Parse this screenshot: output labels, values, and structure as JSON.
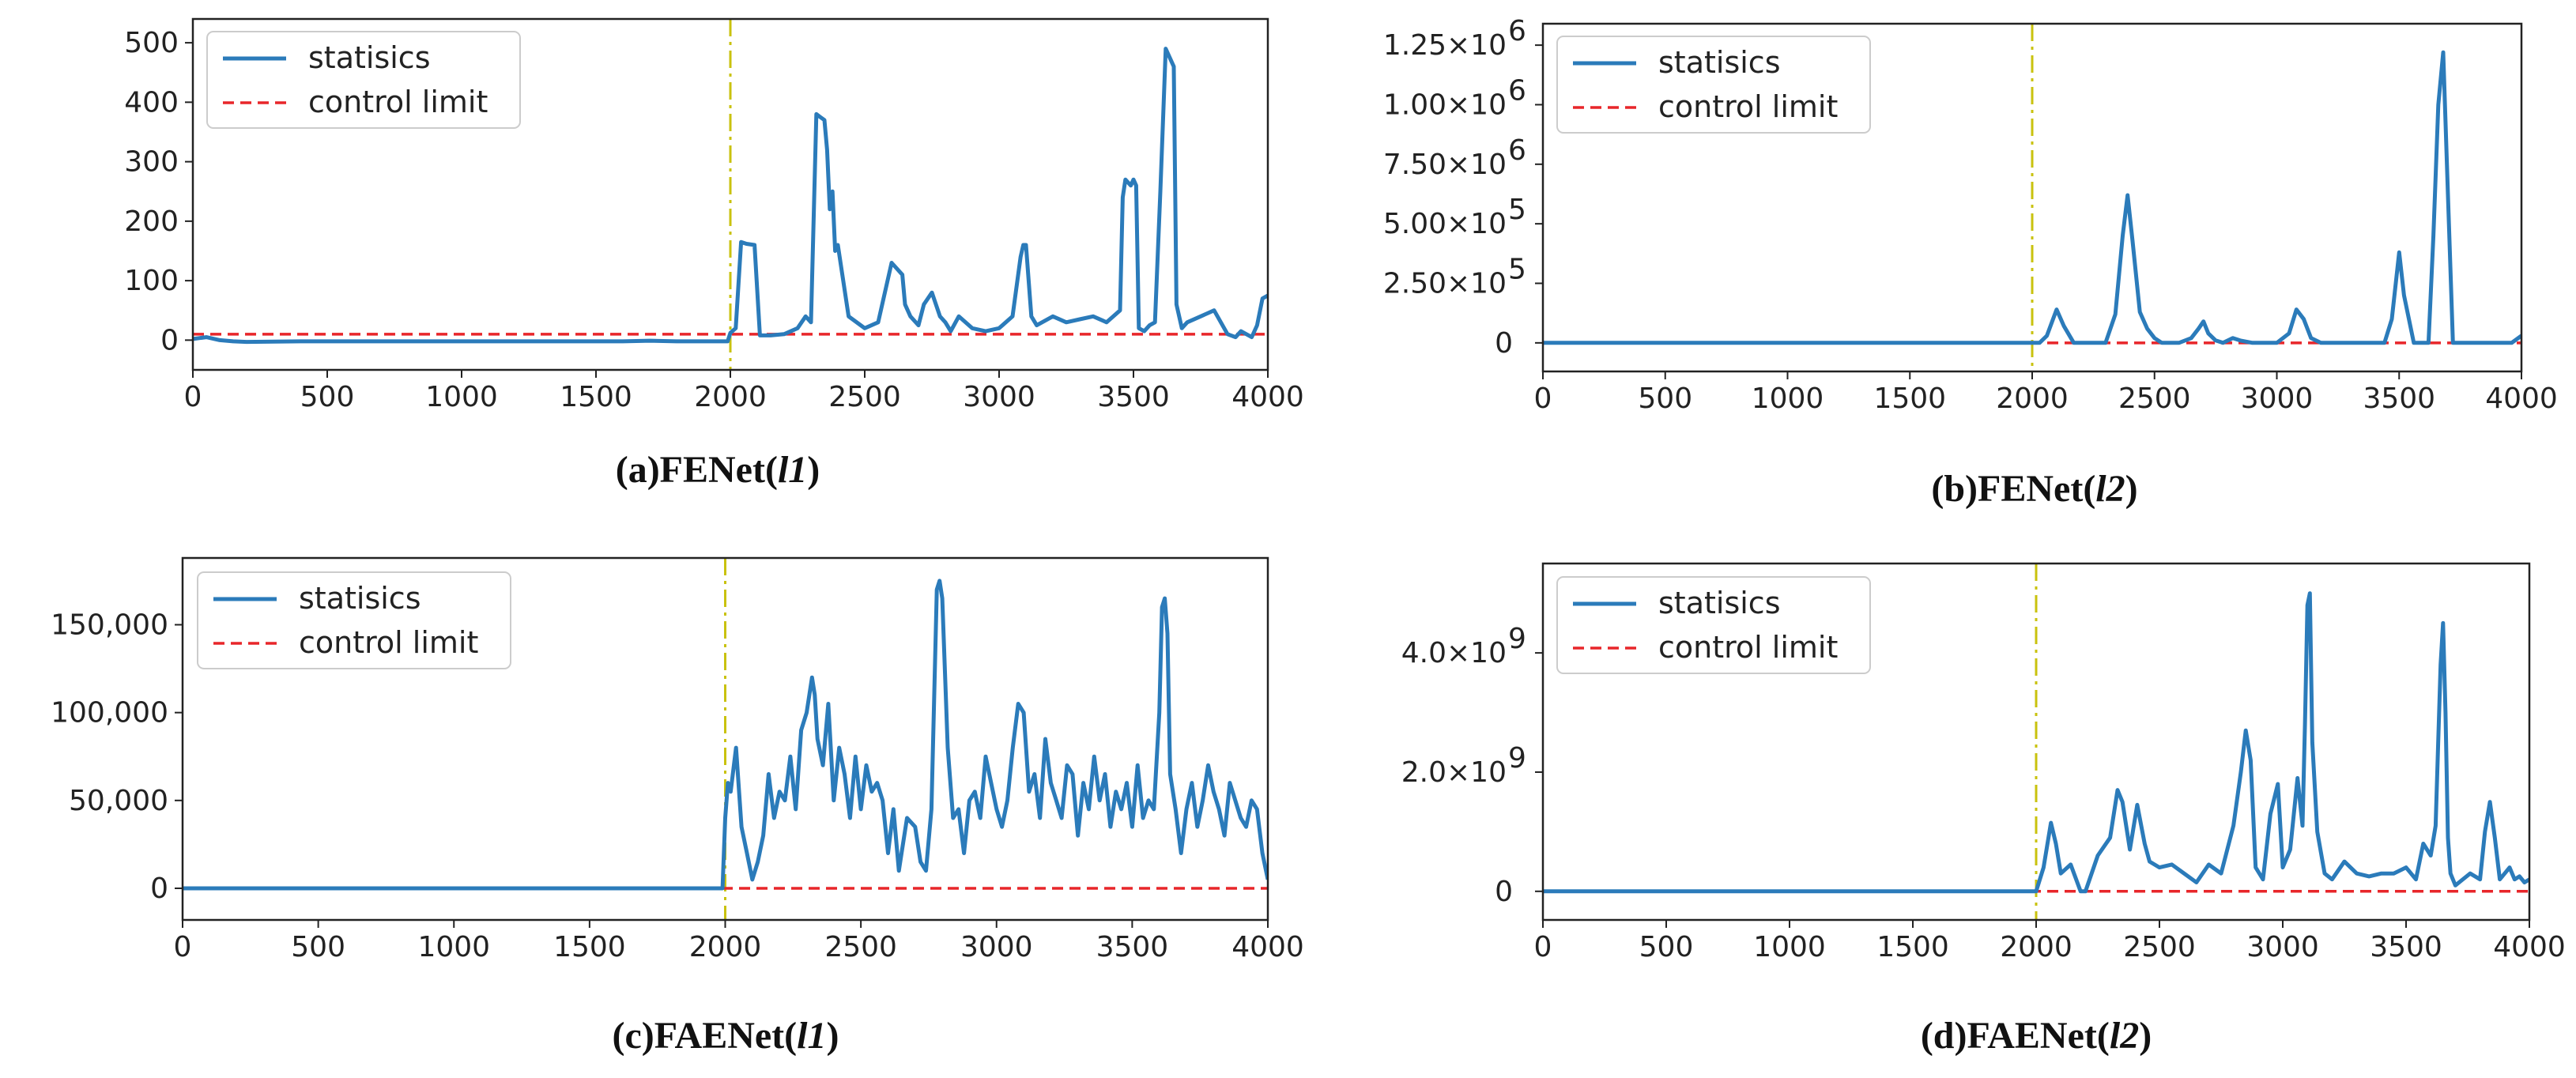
{
  "colors": {
    "statistics": "#2b7bba",
    "control_limit": "#e8262a",
    "marker": "#c9c20e",
    "axes": "#222222"
  },
  "chart_data": [
    {
      "type": "line",
      "id": "a",
      "caption_prefix": "(a)FENet(",
      "caption_italic": "l1",
      "caption_suffix": ")",
      "xlim": [
        0,
        4000
      ],
      "ylim": [
        -50,
        540
      ],
      "xticks": [
        0,
        500,
        1000,
        1500,
        2000,
        2500,
        3000,
        3500,
        4000
      ],
      "xtick_labels": [
        "0",
        "500",
        "1000",
        "1500",
        "2000",
        "2500",
        "3000",
        "3500",
        "4000"
      ],
      "yticks": [
        0,
        100,
        200,
        300,
        400,
        500
      ],
      "ytick_labels": [
        "0",
        "100",
        "200",
        "300",
        "400",
        "500"
      ],
      "vline_x": 2000,
      "legend": [
        "statisics",
        "control limit"
      ],
      "legend_loc": "upper-left",
      "control_limit": 10,
      "series": [
        {
          "name": "statisics",
          "x": [
            0,
            50,
            100,
            150,
            200,
            400,
            600,
            800,
            1000,
            1200,
            1400,
            1600,
            1700,
            1800,
            1990,
            2000,
            2020,
            2040,
            2060,
            2090,
            2110,
            2150,
            2200,
            2250,
            2280,
            2300,
            2320,
            2335,
            2350,
            2360,
            2370,
            2380,
            2390,
            2400,
            2420,
            2440,
            2470,
            2500,
            2550,
            2600,
            2640,
            2650,
            2670,
            2700,
            2720,
            2750,
            2780,
            2800,
            2820,
            2850,
            2900,
            2950,
            3000,
            3050,
            3080,
            3090,
            3100,
            3120,
            3140,
            3160,
            3200,
            3250,
            3300,
            3350,
            3400,
            3450,
            3460,
            3470,
            3490,
            3500,
            3510,
            3520,
            3540,
            3560,
            3580,
            3600,
            3620,
            3630,
            3640,
            3650,
            3660,
            3680,
            3700,
            3750,
            3800,
            3850,
            3880,
            3900,
            3940,
            3960,
            3980,
            4000
          ],
          "y": [
            2,
            5,
            0,
            -2,
            -3,
            -2,
            -2,
            -2,
            -2,
            -2,
            -2,
            -2,
            -1,
            -2,
            -2,
            12,
            20,
            165,
            162,
            160,
            8,
            8,
            10,
            20,
            40,
            30,
            380,
            375,
            370,
            320,
            220,
            250,
            150,
            160,
            100,
            40,
            30,
            20,
            30,
            130,
            110,
            60,
            40,
            25,
            60,
            80,
            40,
            30,
            15,
            40,
            20,
            15,
            20,
            40,
            140,
            160,
            160,
            40,
            25,
            30,
            40,
            30,
            35,
            40,
            30,
            50,
            240,
            270,
            260,
            270,
            260,
            20,
            15,
            25,
            30,
            250,
            490,
            480,
            470,
            460,
            60,
            20,
            30,
            40,
            50,
            10,
            5,
            15,
            5,
            25,
            70,
            75
          ]
        }
      ]
    },
    {
      "type": "line",
      "id": "b",
      "caption_prefix": "(b)FENet(",
      "caption_italic": "l2",
      "caption_suffix": ")",
      "xlim": [
        0,
        4000
      ],
      "ylim": [
        -120000,
        1340000
      ],
      "xticks": [
        0,
        500,
        1000,
        1500,
        2000,
        2500,
        3000,
        3500,
        4000
      ],
      "xtick_labels": [
        "0",
        "500",
        "1000",
        "1500",
        "2000",
        "2500",
        "3000",
        "3500",
        "4000"
      ],
      "yticks": [
        0,
        250000,
        500000,
        750000,
        1000000,
        1250000
      ],
      "ytick_base": [
        "0",
        "2.50×10",
        "5.00×10",
        "7.50×10",
        "1.00×10",
        "1.25×10"
      ],
      "ytick_exp": [
        "",
        "5",
        "5",
        "6",
        "6",
        "6"
      ],
      "vline_x": 2000,
      "legend": [
        "statisics",
        "control limit"
      ],
      "legend_loc": "upper-left",
      "control_limit": 0,
      "series": [
        {
          "name": "statisics",
          "x": [
            0,
            500,
            1000,
            1500,
            2000,
            2030,
            2060,
            2100,
            2130,
            2170,
            2200,
            2300,
            2340,
            2370,
            2390,
            2410,
            2440,
            2470,
            2500,
            2530,
            2550,
            2600,
            2650,
            2680,
            2700,
            2720,
            2750,
            2780,
            2820,
            2850,
            2900,
            3000,
            3050,
            3080,
            3110,
            3140,
            3180,
            3250,
            3300,
            3400,
            3440,
            3470,
            3500,
            3520,
            3560,
            3620,
            3640,
            3660,
            3680,
            3700,
            3720,
            3760,
            3800,
            3900,
            3960,
            4000
          ],
          "y": [
            0,
            0,
            0,
            0,
            0,
            0,
            30000,
            140000,
            70000,
            0,
            0,
            0,
            120000,
            450000,
            620000,
            430000,
            130000,
            60000,
            20000,
            0,
            0,
            0,
            20000,
            60000,
            90000,
            40000,
            10000,
            0,
            20000,
            10000,
            0,
            0,
            40000,
            140000,
            100000,
            20000,
            0,
            0,
            0,
            0,
            0,
            100000,
            380000,
            200000,
            0,
            0,
            450000,
            1000000,
            1220000,
            600000,
            0,
            0,
            0,
            0,
            0,
            30000
          ]
        }
      ]
    },
    {
      "type": "line",
      "id": "c",
      "caption_prefix": "(c)FAENet(",
      "caption_italic": "l1",
      "caption_suffix": ")",
      "xlim": [
        0,
        4000
      ],
      "ylim": [
        -18000,
        188000
      ],
      "xticks": [
        0,
        500,
        1000,
        1500,
        2000,
        2500,
        3000,
        3500,
        4000
      ],
      "xtick_labels": [
        "0",
        "500",
        "1000",
        "1500",
        "2000",
        "2500",
        "3000",
        "3500",
        "4000"
      ],
      "yticks": [
        0,
        50000,
        100000,
        150000
      ],
      "ytick_labels": [
        "0",
        "50,000",
        "100,000",
        "150,000"
      ],
      "vline_x": 2000,
      "legend": [
        "statisics",
        "control limit"
      ],
      "legend_loc": "upper-left",
      "control_limit": 0,
      "series": [
        {
          "name": "statisics",
          "x": [
            0,
            500,
            1000,
            1500,
            1990,
            2000,
            2010,
            2020,
            2040,
            2060,
            2080,
            2100,
            2120,
            2140,
            2160,
            2180,
            2200,
            2220,
            2240,
            2260,
            2280,
            2300,
            2320,
            2330,
            2340,
            2360,
            2380,
            2400,
            2420,
            2440,
            2460,
            2480,
            2500,
            2520,
            2540,
            2560,
            2580,
            2600,
            2620,
            2640,
            2650,
            2670,
            2700,
            2720,
            2740,
            2760,
            2780,
            2790,
            2800,
            2820,
            2840,
            2860,
            2880,
            2900,
            2920,
            2940,
            2960,
            2980,
            3000,
            3020,
            3040,
            3060,
            3080,
            3100,
            3120,
            3140,
            3160,
            3180,
            3200,
            3220,
            3240,
            3260,
            3280,
            3300,
            3320,
            3340,
            3360,
            3380,
            3400,
            3420,
            3440,
            3460,
            3480,
            3500,
            3520,
            3540,
            3560,
            3580,
            3600,
            3610,
            3620,
            3630,
            3640,
            3660,
            3680,
            3700,
            3720,
            3740,
            3760,
            3780,
            3800,
            3820,
            3840,
            3860,
            3880,
            3900,
            3920,
            3940,
            3960,
            3980,
            4000
          ],
          "y": [
            0,
            0,
            0,
            0,
            0,
            40000,
            60000,
            55000,
            80000,
            35000,
            20000,
            5000,
            15000,
            30000,
            65000,
            40000,
            55000,
            50000,
            75000,
            45000,
            90000,
            100000,
            120000,
            110000,
            85000,
            70000,
            105000,
            50000,
            80000,
            65000,
            40000,
            75000,
            45000,
            70000,
            55000,
            60000,
            50000,
            20000,
            45000,
            10000,
            20000,
            40000,
            35000,
            15000,
            10000,
            45000,
            170000,
            175000,
            165000,
            80000,
            40000,
            45000,
            20000,
            50000,
            55000,
            40000,
            75000,
            60000,
            45000,
            35000,
            50000,
            80000,
            105000,
            100000,
            55000,
            65000,
            40000,
            85000,
            60000,
            50000,
            40000,
            70000,
            65000,
            30000,
            60000,
            45000,
            75000,
            50000,
            65000,
            35000,
            55000,
            45000,
            60000,
            35000,
            70000,
            40000,
            50000,
            45000,
            100000,
            160000,
            165000,
            145000,
            65000,
            45000,
            20000,
            45000,
            60000,
            35000,
            50000,
            70000,
            55000,
            45000,
            30000,
            60000,
            50000,
            40000,
            35000,
            50000,
            45000,
            20000,
            5000
          ]
        }
      ]
    },
    {
      "type": "line",
      "id": "d",
      "caption_prefix": "(d)FAENet(",
      "caption_italic": "l2",
      "caption_suffix": ")",
      "xlim": [
        0,
        4000
      ],
      "ylim": [
        -480000000,
        5500000000
      ],
      "xticks": [
        0,
        500,
        1000,
        1500,
        2000,
        2500,
        3000,
        3500,
        4000
      ],
      "xtick_labels": [
        "0",
        "500",
        "1000",
        "1500",
        "2000",
        "2500",
        "3000",
        "3500",
        "4000"
      ],
      "yticks": [
        0,
        2000000000,
        4000000000
      ],
      "ytick_base": [
        "0",
        "2.0×10",
        "4.0×10"
      ],
      "ytick_exp": [
        "",
        "9",
        "9"
      ],
      "vline_x": 2000,
      "legend": [
        "statisics",
        "control limit"
      ],
      "legend_loc": "upper-left",
      "control_limit": 0,
      "series": [
        {
          "name": "statisics",
          "x": [
            0,
            500,
            1000,
            1500,
            1990,
            2000,
            2030,
            2060,
            2080,
            2100,
            2140,
            2180,
            2200,
            2250,
            2300,
            2330,
            2350,
            2380,
            2410,
            2440,
            2460,
            2500,
            2550,
            2600,
            2650,
            2700,
            2750,
            2800,
            2830,
            2850,
            2870,
            2890,
            2920,
            2950,
            2980,
            3000,
            3030,
            3060,
            3080,
            3090,
            3100,
            3110,
            3120,
            3140,
            3170,
            3200,
            3250,
            3300,
            3350,
            3400,
            3450,
            3500,
            3540,
            3570,
            3600,
            3620,
            3640,
            3650,
            3660,
            3670,
            3680,
            3700,
            3730,
            3760,
            3800,
            3820,
            3840,
            3860,
            3880,
            3900,
            3920,
            3940,
            3960,
            3980,
            4000
          ],
          "y": [
            0,
            0,
            0,
            0,
            0,
            0,
            400000000,
            1150000000,
            800000000,
            300000000,
            450000000,
            0,
            0,
            600000000,
            900000000,
            1700000000,
            1500000000,
            700000000,
            1450000000,
            800000000,
            500000000,
            400000000,
            450000000,
            300000000,
            150000000,
            450000000,
            300000000,
            1100000000,
            2000000000,
            2700000000,
            2200000000,
            400000000,
            200000000,
            1300000000,
            1800000000,
            400000000,
            700000000,
            1900000000,
            1100000000,
            2800000000,
            4800000000,
            5000000000,
            2500000000,
            1000000000,
            300000000,
            200000000,
            500000000,
            300000000,
            250000000,
            300000000,
            300000000,
            400000000,
            200000000,
            800000000,
            600000000,
            1100000000,
            3800000000,
            4500000000,
            3000000000,
            900000000,
            300000000,
            100000000,
            200000000,
            300000000,
            200000000,
            1000000000,
            1500000000,
            900000000,
            200000000,
            300000000,
            400000000,
            200000000,
            250000000,
            150000000,
            200000000
          ]
        }
      ]
    }
  ]
}
